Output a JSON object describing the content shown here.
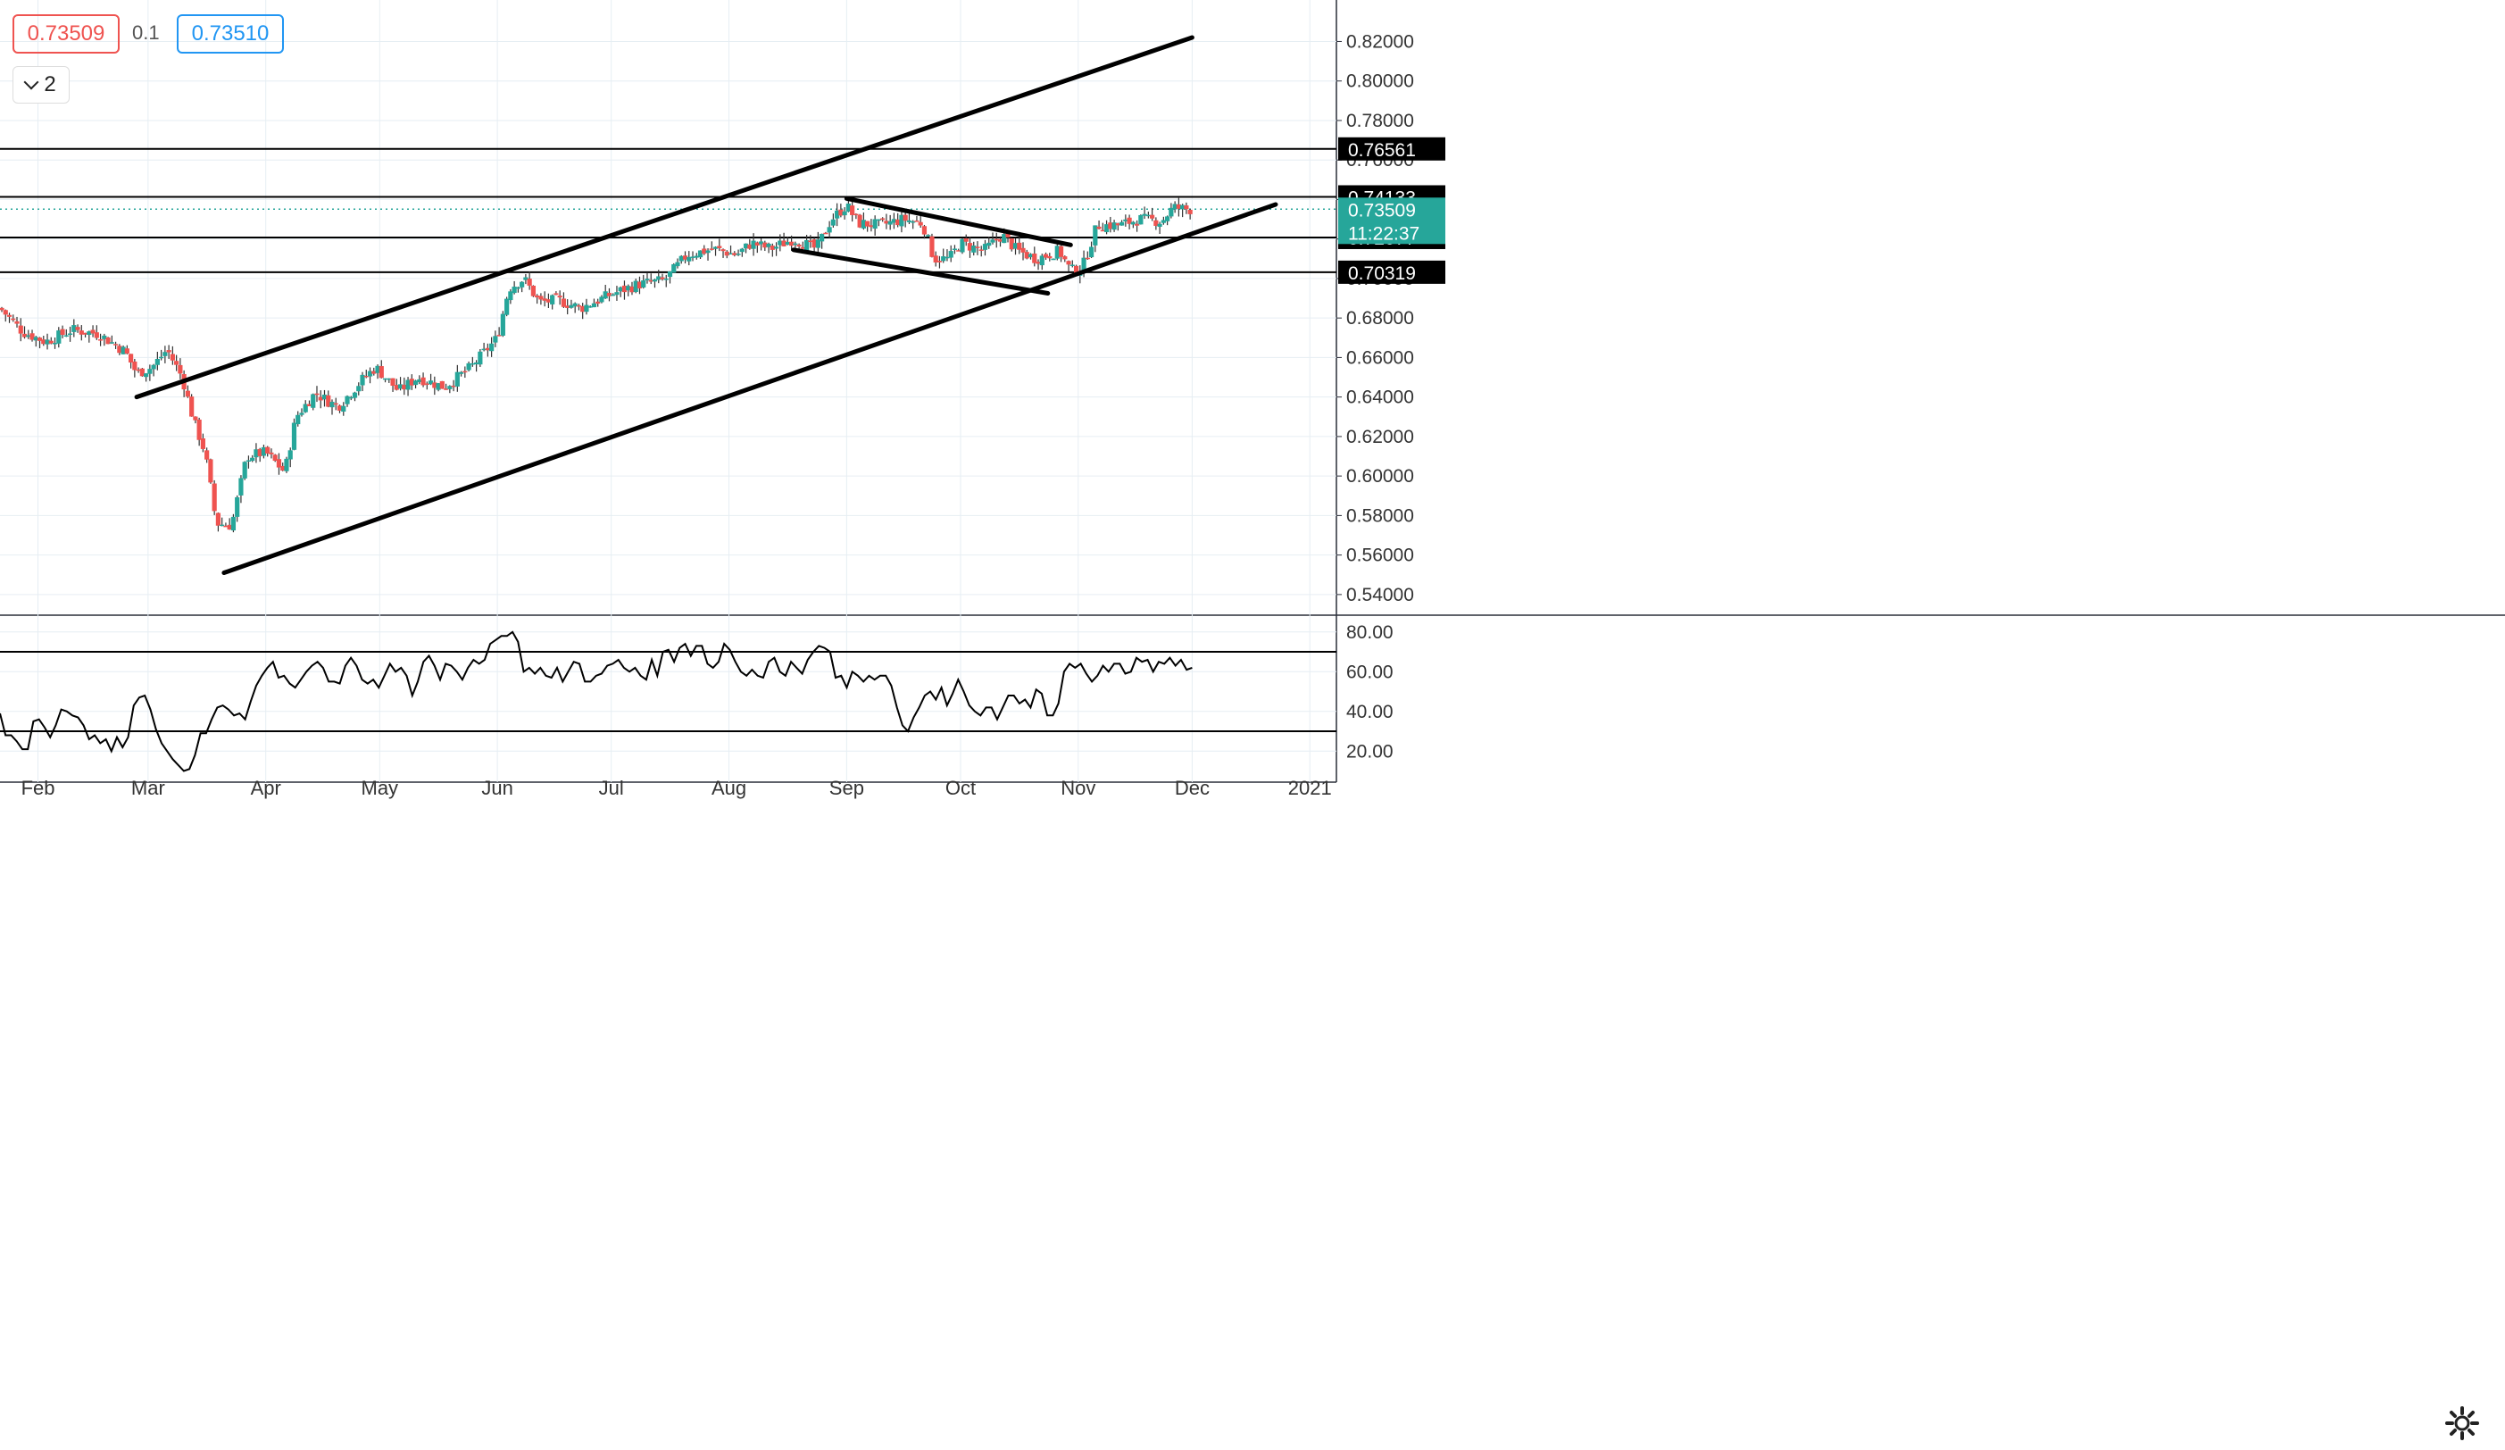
{
  "toolbar": {
    "bid": "0.73509",
    "spread": "0.1",
    "ask": "0.73510",
    "indicator_count": "2"
  },
  "colors": {
    "up": "#26a69a",
    "down": "#ef5350",
    "price_line": "#26a69a",
    "grid": "#e6eef3",
    "trendline": "#000000",
    "rsi": "#000000"
  },
  "chart_data": [
    {
      "type": "candlestick",
      "y_ticks": [
        "0.82000",
        "0.80000",
        "0.78000",
        "0.76000",
        "0.74000",
        "0.72000",
        "0.70000",
        "0.68000",
        "0.66000",
        "0.64000",
        "0.62000",
        "0.60000",
        "0.58000",
        "0.56000",
        "0.54000"
      ],
      "ylim": [
        0.53,
        0.841
      ],
      "x_ticks": [
        {
          "label": "Feb",
          "x": "2020-02-01"
        },
        {
          "label": "Mar",
          "x": "2020-03-01"
        },
        {
          "label": "Apr",
          "x": "2020-04-01"
        },
        {
          "label": "May",
          "x": "2020-05-01"
        },
        {
          "label": "Jun",
          "x": "2020-06-01"
        },
        {
          "label": "Jul",
          "x": "2020-07-01"
        },
        {
          "label": "Aug",
          "x": "2020-08-01"
        },
        {
          "label": "Sep",
          "x": "2020-09-01"
        },
        {
          "label": "Oct",
          "x": "2020-10-01"
        },
        {
          "label": "Nov",
          "x": "2020-11-01"
        },
        {
          "label": "Dec",
          "x": "2020-12-01"
        },
        {
          "label": "2021",
          "x": "2021-01-01"
        }
      ],
      "xlim": [
        "2020-01-22",
        "2021-01-08"
      ],
      "close_path": [
        [
          "2020-01-22",
          0.685
        ],
        [
          "2020-01-28",
          0.673
        ],
        [
          "2020-02-03",
          0.668
        ],
        [
          "2020-02-10",
          0.674
        ],
        [
          "2020-02-17",
          0.672
        ],
        [
          "2020-02-24",
          0.663
        ],
        [
          "2020-02-27",
          0.652
        ],
        [
          "2020-03-02",
          0.655
        ],
        [
          "2020-03-06",
          0.664
        ],
        [
          "2020-03-10",
          0.65
        ],
        [
          "2020-03-13",
          0.628
        ],
        [
          "2020-03-16",
          0.612
        ],
        [
          "2020-03-19",
          0.576
        ],
        [
          "2020-03-23",
          0.575
        ],
        [
          "2020-03-27",
          0.61
        ],
        [
          "2020-04-01",
          0.612
        ],
        [
          "2020-04-06",
          0.602
        ],
        [
          "2020-04-09",
          0.63
        ],
        [
          "2020-04-14",
          0.642
        ],
        [
          "2020-04-20",
          0.635
        ],
        [
          "2020-04-27",
          0.65
        ],
        [
          "2020-04-30",
          0.655
        ],
        [
          "2020-05-06",
          0.643
        ],
        [
          "2020-05-11",
          0.65
        ],
        [
          "2020-05-18",
          0.645
        ],
        [
          "2020-05-25",
          0.655
        ],
        [
          "2020-06-01",
          0.67
        ],
        [
          "2020-06-04",
          0.695
        ],
        [
          "2020-06-08",
          0.7
        ],
        [
          "2020-06-12",
          0.688
        ],
        [
          "2020-06-17",
          0.689
        ],
        [
          "2020-06-23",
          0.685
        ],
        [
          "2020-07-01",
          0.692
        ],
        [
          "2020-07-08",
          0.697
        ],
        [
          "2020-07-15",
          0.699
        ],
        [
          "2020-07-21",
          0.712
        ],
        [
          "2020-07-28",
          0.715
        ],
        [
          "2020-08-03",
          0.712
        ],
        [
          "2020-08-07",
          0.718
        ],
        [
          "2020-08-12",
          0.715
        ],
        [
          "2020-08-18",
          0.72
        ],
        [
          "2020-08-24",
          0.715
        ],
        [
          "2020-08-28",
          0.73
        ],
        [
          "2020-09-01",
          0.737
        ],
        [
          "2020-09-04",
          0.728
        ],
        [
          "2020-09-10",
          0.727
        ],
        [
          "2020-09-16",
          0.73
        ],
        [
          "2020-09-21",
          0.728
        ],
        [
          "2020-09-24",
          0.71
        ],
        [
          "2020-09-28",
          0.71
        ],
        [
          "2020-10-01",
          0.718
        ],
        [
          "2020-10-07",
          0.714
        ],
        [
          "2020-10-12",
          0.722
        ],
        [
          "2020-10-16",
          0.714
        ],
        [
          "2020-10-21",
          0.71
        ],
        [
          "2020-10-27",
          0.714
        ],
        [
          "2020-10-30",
          0.704
        ],
        [
          "2020-11-02",
          0.705
        ],
        [
          "2020-11-06",
          0.727
        ],
        [
          "2020-11-12",
          0.727
        ],
        [
          "2020-11-17",
          0.73
        ],
        [
          "2020-11-23",
          0.729
        ],
        [
          "2020-11-26",
          0.736
        ],
        [
          "2020-11-30",
          0.735
        ],
        [
          "2020-12-01",
          0.7351
        ]
      ],
      "trendlines": [
        {
          "from": [
            "2020-02-27",
            0.64
          ],
          "to": [
            "2020-12-01",
            0.822
          ]
        },
        {
          "from": [
            "2020-03-21",
            0.551
          ],
          "to": [
            "2020-12-23",
            0.7375
          ]
        },
        {
          "from": [
            "2020-09-01",
            0.7405
          ],
          "to": [
            "2020-10-30",
            0.717
          ]
        },
        {
          "from": [
            "2020-08-18",
            0.7145
          ],
          "to": [
            "2020-10-24",
            0.6925
          ]
        }
      ],
      "horizontal_lines": [
        {
          "price": 0.76561,
          "label": "0.76561"
        },
        {
          "price": 0.74133,
          "label": "0.74133"
        },
        {
          "price": 0.72077,
          "label": "0.72077"
        },
        {
          "price": 0.70319,
          "label": "0.70319"
        }
      ],
      "current_price": {
        "price": 0.73509,
        "label": "0.73509",
        "countdown": "11:22:37"
      }
    },
    {
      "type": "line",
      "name": "RSI",
      "y_ticks": [
        "80.00",
        "60.00",
        "40.00",
        "20.00"
      ],
      "ylim": [
        8,
        88
      ],
      "levels": [
        70,
        30
      ],
      "values": [
        39,
        28,
        28,
        25,
        21,
        21,
        35,
        36,
        32,
        27,
        33,
        41,
        40,
        38,
        37,
        33,
        26,
        28,
        24,
        26,
        20,
        27,
        22,
        27,
        43,
        47,
        48,
        41,
        31,
        24,
        20,
        16,
        13,
        10,
        11,
        18,
        29,
        29,
        36,
        42,
        43,
        41,
        38,
        39,
        36,
        45,
        53,
        58,
        62,
        65,
        57,
        58,
        54,
        52,
        56,
        60,
        63,
        65,
        62,
        55,
        55,
        54,
        63,
        67,
        63,
        56,
        54,
        56,
        52,
        58,
        64,
        60,
        62,
        58,
        48,
        55,
        65,
        68,
        63,
        56,
        64,
        63,
        60,
        56,
        62,
        66,
        64,
        66,
        74,
        76,
        78,
        78,
        80,
        75,
        60,
        62,
        59,
        62,
        58,
        57,
        62,
        55,
        60,
        65,
        64,
        55,
        55,
        58,
        59,
        63,
        64,
        66,
        62,
        60,
        62,
        58,
        56,
        66,
        58,
        70,
        71,
        65,
        72,
        74,
        68,
        73,
        73,
        64,
        62,
        65,
        74,
        71,
        65,
        60,
        58,
        61,
        58,
        57,
        65,
        67,
        60,
        58,
        65,
        62,
        59,
        66,
        70,
        73,
        72,
        70,
        57,
        58,
        52,
        60,
        58,
        55,
        58,
        56,
        58,
        58,
        53,
        42,
        33,
        30,
        37,
        42,
        48,
        50,
        46,
        52,
        43,
        49,
        56,
        50,
        43,
        40,
        38,
        42,
        42,
        36,
        42,
        48,
        48,
        44,
        46,
        42,
        51,
        49,
        38,
        38,
        44,
        60,
        64,
        62,
        64,
        59,
        55,
        58,
        63,
        60,
        64,
        64,
        59,
        60,
        67,
        65,
        66,
        60,
        65,
        64,
        67,
        63,
        66,
        61,
        62
      ]
    }
  ]
}
